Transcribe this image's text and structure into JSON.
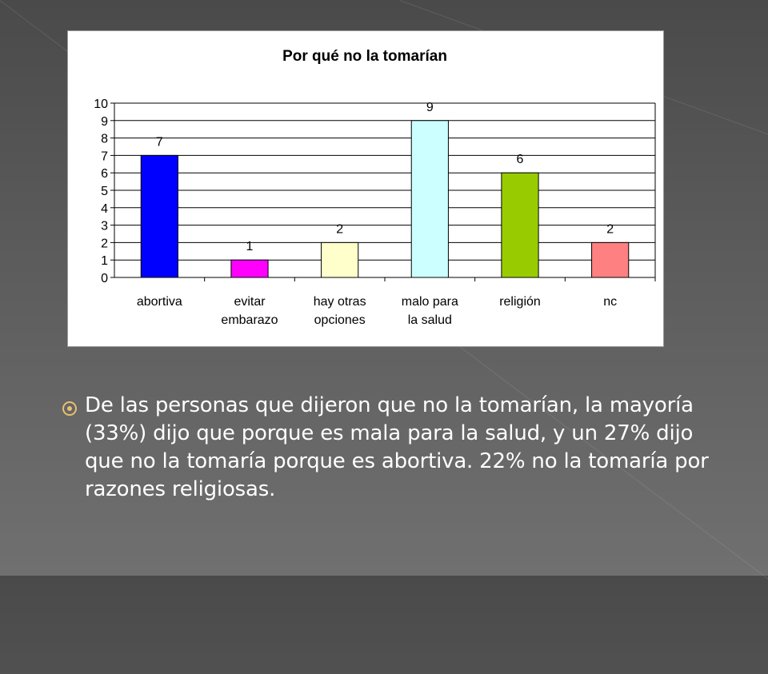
{
  "chart_data": {
    "type": "bar",
    "title": "Por qué no la tomarían",
    "categories": [
      [
        "abortiva"
      ],
      [
        "evitar",
        "embarazo"
      ],
      [
        "hay otras",
        "opciones"
      ],
      [
        "malo para",
        "la salud"
      ],
      [
        "religión"
      ],
      [
        "nc"
      ]
    ],
    "values": [
      7,
      1,
      2,
      9,
      6,
      2
    ],
    "colors": [
      "#0000ff",
      "#ff00ff",
      "#ffffcc",
      "#ccffff",
      "#99cc00",
      "#ff8080"
    ],
    "ylim": [
      0,
      10
    ],
    "yticks": [
      0,
      1,
      2,
      3,
      4,
      5,
      6,
      7,
      8,
      9,
      10
    ],
    "grid": true,
    "data_labels": true,
    "xlabel": "",
    "ylabel": ""
  },
  "bullet": {
    "text": "De las personas que dijeron que no la tomarían, la mayoría (33%) dijo que porque es mala para la salud, y un 27% dijo que no la tomaría porque es abortiva. 22% no la tomaría por razones religiosas."
  }
}
